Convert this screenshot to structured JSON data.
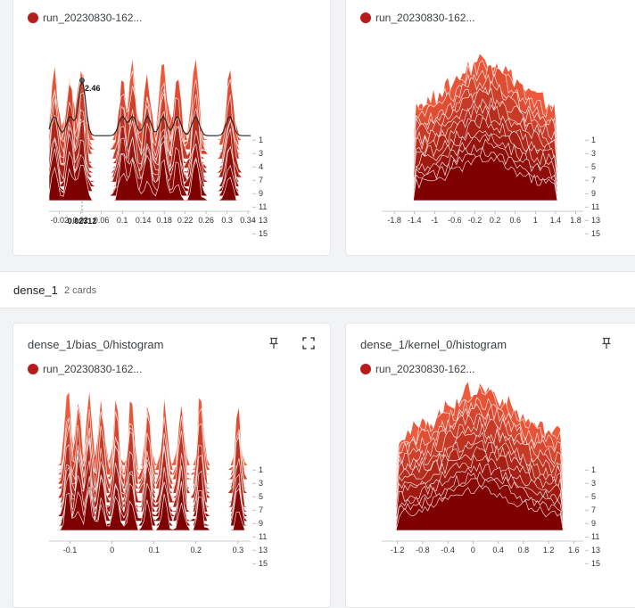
{
  "colors": {
    "run": "#b71c1c",
    "dark": "#7f0000",
    "light": "#ef5a3c"
  },
  "cards_top": [
    {
      "run_label": "run_20230830-162..."
    },
    {
      "run_label": "run_20230830-162..."
    }
  ],
  "group": {
    "name": "dense_1",
    "count": "2 cards"
  },
  "cards_bottom": [
    {
      "title": "dense_1/bias_0/histogram",
      "run_label": "run_20230830-162...",
      "pin_icon": "pin-icon",
      "expand_icon": "fullscreen-icon"
    },
    {
      "title": "dense_1/kernel_0/histogram",
      "run_label": "run_20230830-162...",
      "pin_icon": "pin-icon",
      "expand_icon": "fullscreen-icon"
    }
  ],
  "chart_data": [
    {
      "type": "histogram",
      "x_ticks": [
        "-0.02",
        "0.02",
        "0.06",
        "0.1",
        "0.14",
        "0.18",
        "0.22",
        "0.26",
        "0.3",
        "0.34"
      ],
      "x_tick_values": [
        -0.02,
        0.02,
        0.06,
        0.1,
        0.14,
        0.18,
        0.22,
        0.26,
        0.3,
        0.34
      ],
      "xlim": [
        -0.04,
        0.345
      ],
      "step_labels": [
        "1",
        "3",
        "4",
        "7",
        "9",
        "11",
        "13",
        "15"
      ],
      "tooltip": {
        "x_label": "0.02312",
        "count_label": "2.46"
      },
      "peaks": [
        -0.03,
        0.0,
        0.023,
        0.1,
        0.12,
        0.148,
        0.178,
        0.205,
        0.24,
        0.305
      ],
      "spread": 0.008
    },
    {
      "type": "histogram",
      "x_ticks": [
        "-1.8",
        "-1.4",
        "-1",
        "-0.6",
        "-0.2",
        "0.2",
        "0.6",
        "1",
        "1.4",
        "1.8"
      ],
      "x_tick_values": [
        -1.8,
        -1.4,
        -1,
        -0.6,
        -0.2,
        0.2,
        0.6,
        1,
        1.4,
        1.8
      ],
      "xlim": [
        -2.05,
        1.95
      ],
      "step_labels": [
        "1",
        "3",
        "5",
        "7",
        "9",
        "11",
        "13",
        "15"
      ],
      "range": [
        -1.4,
        1.4
      ]
    },
    {
      "type": "histogram",
      "x_ticks": [
        "-0.1",
        "0",
        "0.1",
        "0.2",
        "0.3"
      ],
      "x_tick_values": [
        -0.1,
        0,
        0.1,
        0.2,
        0.3
      ],
      "xlim": [
        -0.15,
        0.33
      ],
      "step_labels": [
        "1",
        "3",
        "5",
        "7",
        "9",
        "11",
        "13",
        "15"
      ],
      "peaks": [
        -0.105,
        -0.08,
        -0.055,
        -0.025,
        0.01,
        0.045,
        0.085,
        0.125,
        0.165,
        0.21,
        0.3
      ],
      "spread": 0.008
    },
    {
      "type": "histogram",
      "x_ticks": [
        "-1.2",
        "-0.8",
        "-0.4",
        "0",
        "0.4",
        "0.8",
        "1.2",
        "1.6"
      ],
      "x_tick_values": [
        -1.2,
        -0.8,
        -0.4,
        0,
        0.4,
        0.8,
        1.2,
        1.6
      ],
      "xlim": [
        -1.45,
        1.75
      ],
      "step_labels": [
        "1",
        "3",
        "5",
        "7",
        "9",
        "11",
        "13",
        "15"
      ],
      "range": [
        -1.2,
        1.4
      ]
    }
  ]
}
